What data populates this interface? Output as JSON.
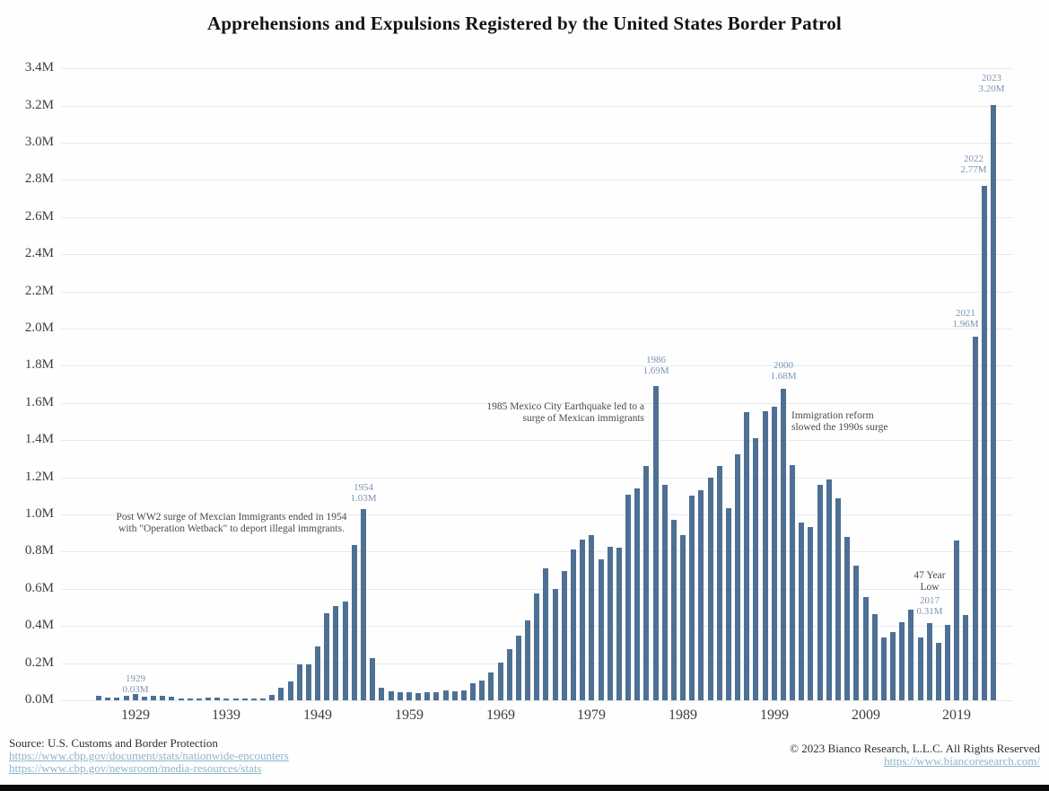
{
  "title": "Apprehensions and Expulsions Registered by the United States Border Patrol",
  "colors": {
    "bar": "#4d7094",
    "annotation_blue": "#7c94b4",
    "annotation_dark": "#4b4b4b",
    "tick_text": "#3d3d3d",
    "grid": "#e9e9e9",
    "link": "#8db5cd"
  },
  "chart_data": {
    "type": "bar",
    "title": "Apprehensions and Expulsions Registered by the United States Border Patrol",
    "xlabel": "",
    "ylabel": "",
    "ylim": [
      0,
      3.4
    ],
    "ytick_step": 0.2,
    "grid": "horizontal",
    "legend": "none",
    "y_tick_labels": [
      "0.0M",
      "0.2M",
      "0.4M",
      "0.6M",
      "0.8M",
      "1.0M",
      "1.2M",
      "1.4M",
      "1.6M",
      "1.8M",
      "2.0M",
      "2.2M",
      "2.4M",
      "2.6M",
      "2.8M",
      "3.0M",
      "3.2M",
      "3.4M"
    ],
    "x_tick_labels": [
      1929,
      1939,
      1949,
      1959,
      1969,
      1979,
      1989,
      1999,
      2009,
      2019
    ],
    "years": [
      1925,
      1926,
      1927,
      1928,
      1929,
      1930,
      1931,
      1932,
      1933,
      1934,
      1935,
      1936,
      1937,
      1938,
      1939,
      1940,
      1941,
      1942,
      1943,
      1944,
      1945,
      1946,
      1947,
      1948,
      1949,
      1950,
      1951,
      1952,
      1953,
      1954,
      1955,
      1956,
      1957,
      1958,
      1959,
      1960,
      1961,
      1962,
      1963,
      1964,
      1965,
      1966,
      1967,
      1968,
      1969,
      1970,
      1971,
      1972,
      1973,
      1974,
      1975,
      1976,
      1977,
      1978,
      1979,
      1980,
      1981,
      1982,
      1983,
      1984,
      1985,
      1986,
      1987,
      1988,
      1989,
      1990,
      1991,
      1992,
      1993,
      1994,
      1995,
      1996,
      1997,
      1998,
      1999,
      2000,
      2001,
      2002,
      2003,
      2004,
      2005,
      2006,
      2007,
      2008,
      2009,
      2010,
      2011,
      2012,
      2013,
      2014,
      2015,
      2016,
      2017,
      2018,
      2019,
      2020,
      2021,
      2022,
      2023
    ],
    "values_millions": [
      0.022,
      0.013,
      0.016,
      0.024,
      0.033,
      0.021,
      0.022,
      0.023,
      0.021,
      0.01,
      0.011,
      0.012,
      0.013,
      0.013,
      0.012,
      0.01,
      0.011,
      0.012,
      0.011,
      0.031,
      0.069,
      0.1,
      0.194,
      0.193,
      0.288,
      0.468,
      0.509,
      0.529,
      0.835,
      1.028,
      0.225,
      0.068,
      0.046,
      0.045,
      0.043,
      0.04,
      0.042,
      0.042,
      0.051,
      0.049,
      0.055,
      0.09,
      0.108,
      0.152,
      0.202,
      0.277,
      0.348,
      0.43,
      0.577,
      0.71,
      0.597,
      0.696,
      0.813,
      0.863,
      0.889,
      0.759,
      0.825,
      0.82,
      1.106,
      1.139,
      1.262,
      1.693,
      1.158,
      0.969,
      0.891,
      1.103,
      1.132,
      1.2,
      1.263,
      1.032,
      1.324,
      1.55,
      1.413,
      1.556,
      1.579,
      1.676,
      1.266,
      0.955,
      0.932,
      1.16,
      1.189,
      1.089,
      0.877,
      0.724,
      0.556,
      0.463,
      0.34,
      0.365,
      0.421,
      0.487,
      0.337,
      0.416,
      0.311,
      0.404,
      0.86,
      0.458,
      1.957,
      2.766,
      3.201
    ],
    "annotations": [
      {
        "id": "ann-1929",
        "lines": [
          "1929",
          "0.03M"
        ],
        "style": "blue",
        "align": "center",
        "x_year": 1929,
        "y_m": 0.145
      },
      {
        "id": "ann-postww2",
        "lines": [
          "Post WW2 surge of Mexcian Immigrants ended in 1954",
          "with \"Operation Wetback\" to deport illegal immgrants."
        ],
        "style": "dark",
        "align": "center",
        "x_year": 1939.5,
        "y_m": 1.015
      },
      {
        "id": "ann-1954",
        "lines": [
          "1954",
          "1.03M"
        ],
        "style": "blue",
        "align": "center",
        "x_year": 1954,
        "y_m": 1.175
      },
      {
        "id": "ann-earthquake",
        "lines": [
          "1985 Mexico City Earthquake led to a",
          "surge of Mexican immigrants"
        ],
        "style": "dark",
        "align": "right",
        "x_year": 1984.8,
        "y_m": 1.61
      },
      {
        "id": "ann-1986",
        "lines": [
          "1986",
          "1.69M"
        ],
        "style": "blue",
        "align": "center",
        "x_year": 1986,
        "y_m": 1.86
      },
      {
        "id": "ann-2000",
        "lines": [
          "2000",
          "1.68M"
        ],
        "style": "blue",
        "align": "center",
        "x_year": 2000,
        "y_m": 1.83
      },
      {
        "id": "ann-reform",
        "lines": [
          "Immigration reform",
          "slowed the 1990s surge"
        ],
        "style": "dark",
        "align": "left",
        "x_year": 2000.9,
        "y_m": 1.56
      },
      {
        "id": "ann-47-year-low",
        "lines": [
          "47 Year",
          "Low"
        ],
        "style": "dark",
        "align": "center",
        "x_year": 2016,
        "y_m": 0.7
      },
      {
        "id": "ann-2017",
        "lines": [
          "2017",
          "0.31M"
        ],
        "style": "blue",
        "align": "center",
        "x_year": 2016,
        "y_m": 0.565
      },
      {
        "id": "ann-2021",
        "lines": [
          "2021",
          "1.96M"
        ],
        "style": "blue",
        "align": "center",
        "x_year": 2020,
        "y_m": 2.11
      },
      {
        "id": "ann-2022",
        "lines": [
          "2022",
          "2.77M"
        ],
        "style": "blue",
        "align": "center",
        "x_year": 2020.8,
        "y_m": 2.94
      },
      {
        "id": "ann-2023",
        "lines": [
          "2023",
          "3.20M"
        ],
        "style": "blue",
        "align": "center",
        "x_year": 2022.8,
        "y_m": 3.375
      }
    ]
  },
  "footer": {
    "source_label": "Source: U.S. Customs and Border Protection",
    "source_links": [
      "https://www.cbp.gov/document/stats/nationwide-encounters",
      "https://www.cbp.gov/newsroom/media-resources/stats"
    ],
    "copyright": "© 2023 Bianco Research, L.L.C. All Rights Reserved",
    "site_link": "https://www.biancoresearch.com/"
  }
}
